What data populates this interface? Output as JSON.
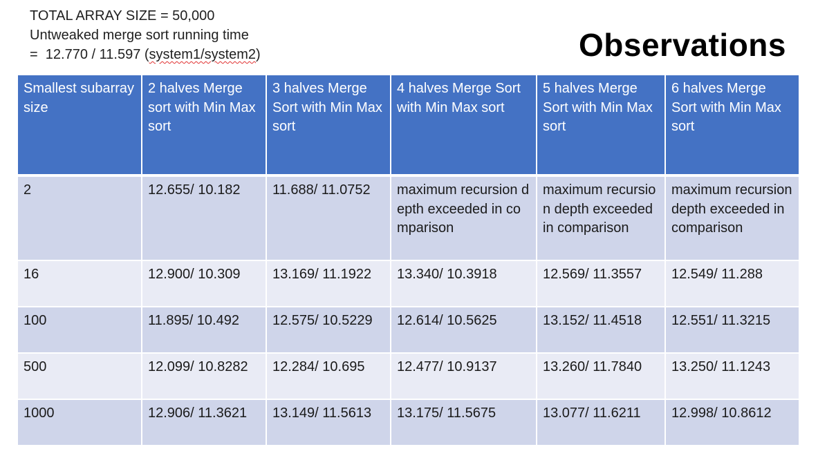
{
  "notes": {
    "line1": "TOTAL ARRAY SIZE = 50,000",
    "line2": "Untweaked merge sort running time",
    "line3_prefix": "=  12.770 / 11.597 (",
    "line3_underlined": "system1/system2",
    "line3_suffix": ")"
  },
  "title": "Observations",
  "table": {
    "headers": [
      "Smallest subarray size",
      "2 halves Merge sort with Min Max sort",
      "3 halves Merge Sort with Min Max sort",
      "4 halves Merge Sort with Min Max sort",
      "5 halves Merge Sort with Min Max sort",
      "6 halves Merge Sort with Min Max sort"
    ],
    "rows": [
      [
        "2",
        "12.655/ 10.182",
        "11.688/ 11.0752",
        "maximum recursion depth exceeded in comparison",
        "maximum recursion depth exceeded in comparison",
        "maximum recursion depth exceeded in comparison"
      ],
      [
        "16",
        "12.900/ 10.309",
        "13.169/ 11.1922",
        "13.340/ 10.3918",
        "12.569/ 11.3557",
        "12.549/ 11.288"
      ],
      [
        "100",
        "11.895/ 10.492",
        "12.575/ 10.5229",
        "12.614/ 10.5625",
        "13.152/ 11.4518",
        "12.551/ 11.3215"
      ],
      [
        "500",
        "12.099/ 10.8282",
        "12.284/ 10.695",
        "12.477/ 10.9137",
        "13.260/ 11.7840",
        "13.250/ 11.1243"
      ],
      [
        "1000",
        "12.906/ 11.3621",
        "13.149/ 11.5613",
        "13.175/ 11.5675",
        "13.077/ 11.6211",
        "12.998/ 10.8612"
      ]
    ]
  }
}
